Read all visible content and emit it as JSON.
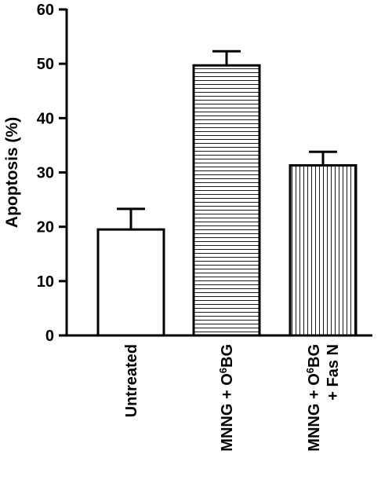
{
  "chart_data": {
    "type": "bar",
    "title": "",
    "xlabel": "",
    "ylabel": "Apoptosis (%)",
    "ylim": [
      0,
      60
    ],
    "yticks": [
      "0",
      "10",
      "20",
      "30",
      "40",
      "50",
      "60"
    ],
    "grid": false,
    "categories": [
      {
        "lines": [
          {
            "text": "Untreated"
          }
        ]
      },
      {
        "lines": [
          {
            "text": "MNNG + O",
            "sup": "6",
            "tail": "BG"
          }
        ]
      },
      {
        "lines": [
          {
            "text": "MNNG + O",
            "sup": "6",
            "tail": "BG"
          },
          {
            "text": "+ Fas N"
          }
        ]
      }
    ],
    "values": [
      19.5,
      49.7,
      31.3
    ],
    "errors": [
      3.8,
      2.6,
      2.5
    ],
    "fills": [
      "none",
      "horizontal-stripes",
      "vertical-stripes"
    ],
    "colors": {
      "ink": "#000000",
      "background": "#ffffff"
    }
  }
}
